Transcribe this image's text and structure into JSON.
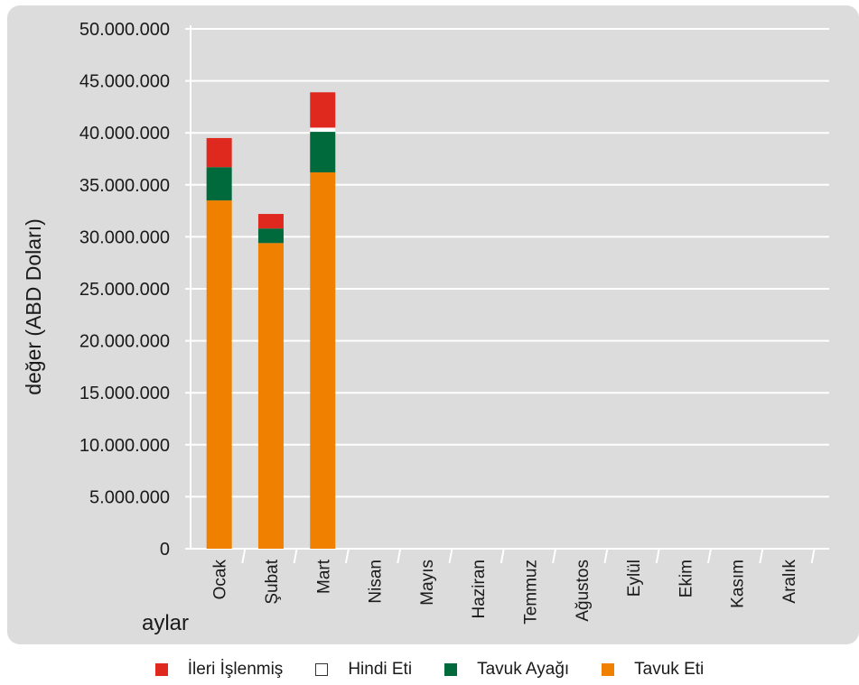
{
  "chart_data": {
    "type": "bar",
    "stacked": true,
    "title": "",
    "xlabel": "aylar",
    "ylabel": "değer (ABD Doları)",
    "ylim": [
      0,
      50000000
    ],
    "yticks": [
      0,
      5000000,
      10000000,
      15000000,
      20000000,
      25000000,
      30000000,
      35000000,
      40000000,
      45000000,
      50000000
    ],
    "ytick_labels": [
      "0",
      "5.000.000",
      "10.000.000",
      "15.000.000",
      "20.000.000",
      "25.000.000",
      "30.000.000",
      "35.000.000",
      "40.000.000",
      "45.000.000",
      "50.000.000"
    ],
    "grid": "horizontal",
    "legend_position": "bottom",
    "categories": [
      "Ocak",
      "Şubat",
      "Mart",
      "Nisan",
      "Mayıs",
      "Haziran",
      "Temmuz",
      "Ağustos",
      "Eylül",
      "Ekim",
      "Kasım",
      "Aralık"
    ],
    "series": [
      {
        "name": "Tavuk Eti",
        "color": "#f08000",
        "values": [
          33500000,
          29400000,
          36200000,
          0,
          0,
          0,
          0,
          0,
          0,
          0,
          0,
          0
        ]
      },
      {
        "name": "Tavuk Ayağı",
        "color": "#006a3c",
        "values": [
          3200000,
          1400000,
          3900000,
          0,
          0,
          0,
          0,
          0,
          0,
          0,
          0,
          0
        ]
      },
      {
        "name": "Hindi Eti",
        "color": "#ffffff",
        "values": [
          0,
          0,
          400000,
          0,
          0,
          0,
          0,
          0,
          0,
          0,
          0,
          0
        ]
      },
      {
        "name": "İleri İşlenmiş",
        "color": "#e0291e",
        "values": [
          2800000,
          1400000,
          3400000,
          0,
          0,
          0,
          0,
          0,
          0,
          0,
          0,
          0
        ]
      }
    ],
    "legend_order": [
      "İleri İşlenmiş",
      "Hindi Eti",
      "Tavuk Ayağı",
      "Tavuk Eti"
    ]
  },
  "colors": {
    "panel_background": "#dcdcdc",
    "gridline": "#ffffff",
    "axis_text": "#1a1a1a"
  }
}
